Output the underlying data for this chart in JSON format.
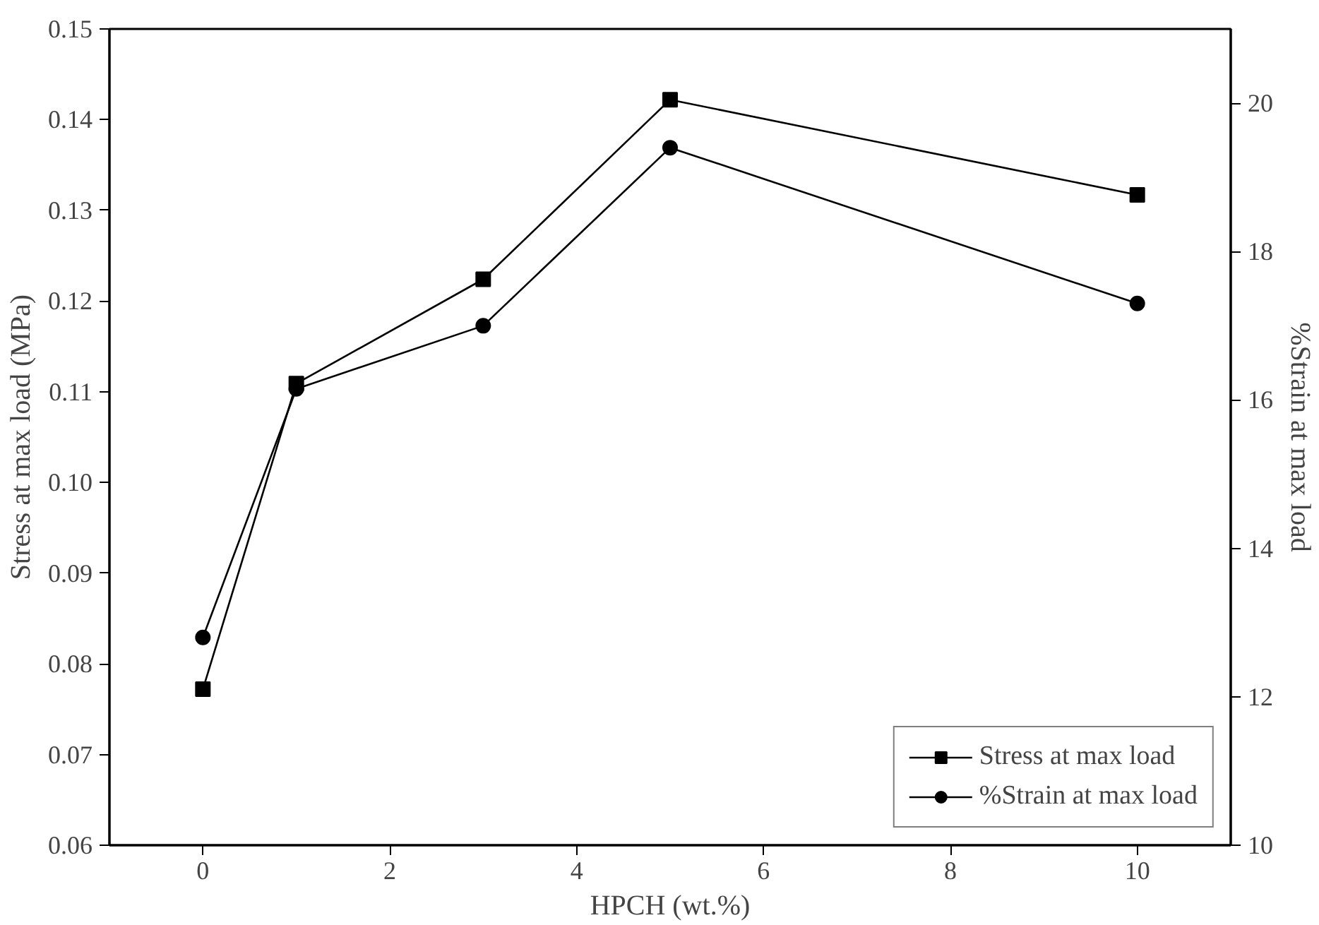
{
  "chart_data": {
    "type": "line",
    "xlabel": "HPCH (wt.%)",
    "ylabel": "Stress at max load (MPa)",
    "y2label": "%Strain at max load",
    "x": [
      0,
      1,
      3,
      5,
      10
    ],
    "series": [
      {
        "name": "Stress at max load",
        "color": "#000000",
        "marker": "square",
        "values": [
          0.0772,
          0.1109,
          0.1224,
          0.1422,
          0.1317
        ]
      },
      {
        "name": "%Strain at max load",
        "color": "#000000",
        "marker": "circle",
        "axis": "y2",
        "values": [
          12.8,
          16.15,
          17.0,
          19.4,
          17.3
        ]
      }
    ],
    "xlim": [
      -1,
      11
    ],
    "xticks": [
      0,
      2,
      4,
      6,
      8,
      10
    ],
    "ylim": [
      0.06,
      0.15
    ],
    "yticks": [
      {
        "value": 0.06,
        "label": "0.06"
      },
      {
        "value": 0.07,
        "label": "0.07"
      },
      {
        "value": 0.08,
        "label": "0.08"
      },
      {
        "value": 0.09,
        "label": "0.09"
      },
      {
        "value": 0.1,
        "label": "0.10"
      },
      {
        "value": 0.11,
        "label": "0.11"
      },
      {
        "value": 0.12,
        "label": "0.12"
      },
      {
        "value": 0.13,
        "label": "0.13"
      },
      {
        "value": 0.14,
        "label": "0.14"
      },
      {
        "value": 0.15,
        "label": "0.15"
      }
    ],
    "y2lim": [
      10,
      21
    ],
    "y2ticks": [
      10,
      12,
      14,
      16,
      18,
      20
    ],
    "grid": false,
    "legend": "bottom right",
    "line_style": "solid"
  }
}
